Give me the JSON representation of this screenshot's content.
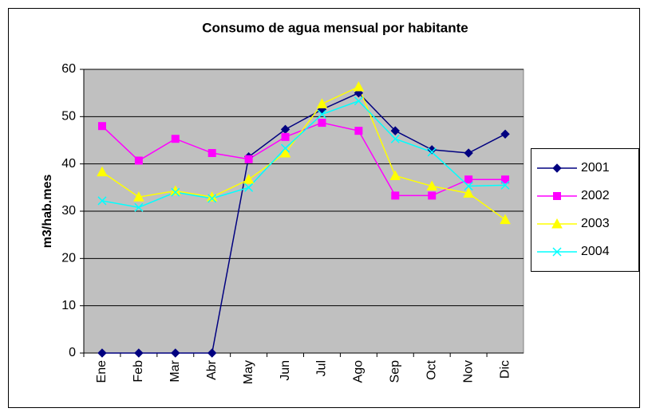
{
  "chart_data": {
    "type": "line",
    "title": "Consumo de agua mensual por habitante",
    "y_label": "m3/hab.mes",
    "categories": [
      "Ene",
      "Feb",
      "Mar",
      "Abr",
      "May",
      "Jun",
      "Jul",
      "Ago",
      "Sep",
      "Oct",
      "Nov",
      "Dic"
    ],
    "series": [
      {
        "name": "2001",
        "color": "#000080",
        "marker": "diamond",
        "values": [
          0,
          0,
          0,
          0,
          41.5,
          47.3,
          51.5,
          55,
          47,
          43,
          42.3,
          46.3
        ]
      },
      {
        "name": "2002",
        "color": "#ff00ff",
        "marker": "square",
        "values": [
          48,
          40.7,
          45.3,
          42.3,
          41,
          45.7,
          48.7,
          47,
          33.3,
          33.3,
          36.7,
          36.7
        ]
      },
      {
        "name": "2003",
        "color": "#ffff00",
        "marker": "triangle",
        "values": [
          38.3,
          33,
          34.3,
          33,
          36.7,
          42.3,
          52.7,
          56.3,
          37.5,
          35.3,
          33.8,
          28.2
        ]
      },
      {
        "name": "2004",
        "color": "#00ffff",
        "marker": "x",
        "values": [
          32.2,
          30.8,
          34,
          32.7,
          35,
          43.3,
          50.5,
          53.3,
          45.3,
          42.5,
          35.3,
          35.5
        ]
      }
    ],
    "ylim": [
      0,
      60
    ],
    "yticks": [
      0,
      10,
      20,
      30,
      40,
      50,
      60
    ],
    "grid": true,
    "legend": "right"
  }
}
